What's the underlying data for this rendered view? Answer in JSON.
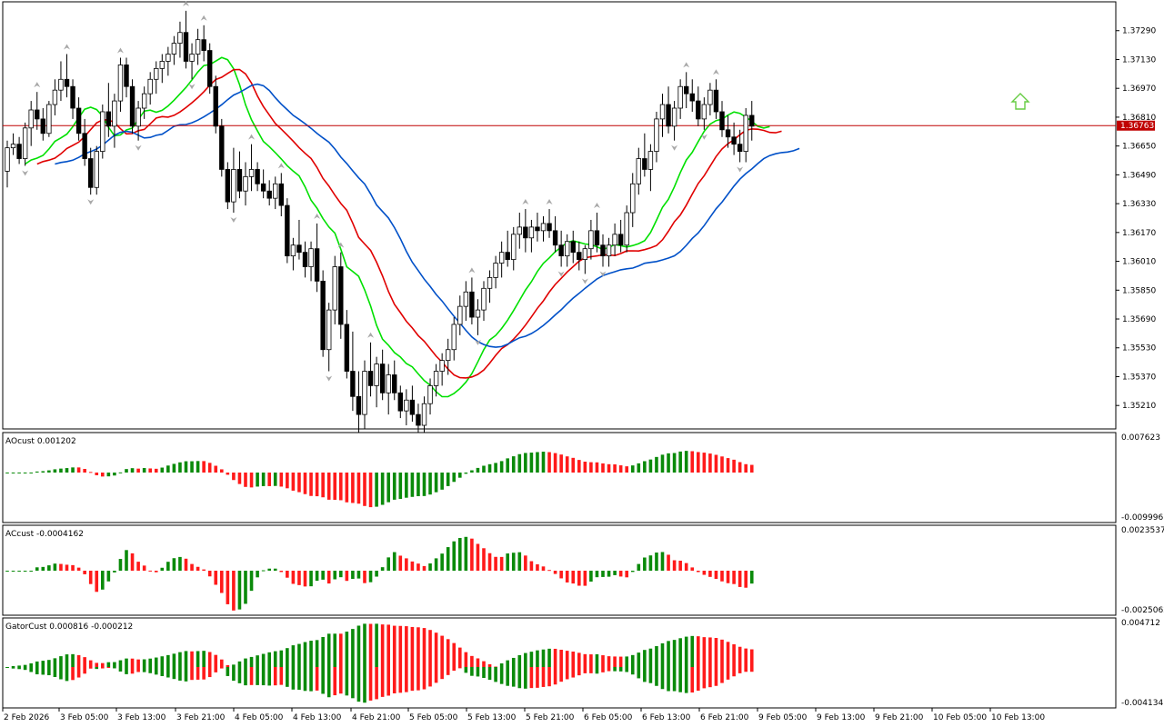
{
  "chart_data": {
    "type": "candlestick",
    "colors": {
      "bull_body": "#ffffff",
      "bear_body": "#000000",
      "candle_outline": "#000000",
      "ma_fast": "#00e000",
      "ma_mid": "#e00000",
      "ma_slow": "#0050c8",
      "hist_up": "#0a8a0a",
      "hist_down": "#ff1a1a",
      "price_line": "#c00000",
      "price_tag_bg": "#c00000",
      "fractal": "#a8a8a8",
      "signal_arrow": "#66cc44",
      "grid": "#000000"
    },
    "price_axis": {
      "ticks": [
        "1.37290",
        "1.37130",
        "1.36970",
        "1.36810",
        "1.36650",
        "1.36490",
        "1.36330",
        "1.36170",
        "1.36010",
        "1.35850",
        "1.35690",
        "1.35530",
        "1.35370",
        "1.35210"
      ],
      "min": 1.3509,
      "max": 1.3744
    },
    "current_price": "1.36763",
    "time_labels": [
      "2 Feb 2026",
      "3 Feb 05:00",
      "3 Feb 13:00",
      "3 Feb 21:00",
      "4 Feb 05:00",
      "4 Feb 13:00",
      "4 Feb 21:00",
      "5 Feb 05:00",
      "5 Feb 13:00",
      "5 Feb 21:00",
      "6 Feb 05:00",
      "6 Feb 13:00",
      "6 Feb 21:00",
      "9 Feb 05:00",
      "9 Feb 13:00",
      "9 Feb 21:00",
      "10 Feb 05:00",
      "10 Feb 13:00"
    ],
    "candles": [
      [
        1.3651,
        1.3668,
        1.3642,
        1.3664
      ],
      [
        1.3664,
        1.3672,
        1.366,
        1.3666
      ],
      [
        1.3666,
        1.367,
        1.3655,
        1.3658
      ],
      [
        1.3658,
        1.3678,
        1.3654,
        1.3675
      ],
      [
        1.3675,
        1.369,
        1.3665,
        1.3685
      ],
      [
        1.3685,
        1.3695,
        1.3674,
        1.368
      ],
      [
        1.368,
        1.3686,
        1.3668,
        1.3672
      ],
      [
        1.3672,
        1.369,
        1.367,
        1.3688
      ],
      [
        1.3688,
        1.3702,
        1.3682,
        1.3696
      ],
      [
        1.3696,
        1.3712,
        1.369,
        1.3702
      ],
      [
        1.3702,
        1.3716,
        1.3692,
        1.3698
      ],
      [
        1.3698,
        1.3702,
        1.368,
        1.3686
      ],
      [
        1.3686,
        1.3692,
        1.3668,
        1.3672
      ],
      [
        1.3672,
        1.368,
        1.3654,
        1.3658
      ],
      [
        1.3658,
        1.3664,
        1.3638,
        1.3642
      ],
      [
        1.3642,
        1.3665,
        1.3638,
        1.3662
      ],
      [
        1.3662,
        1.3688,
        1.3658,
        1.3684
      ],
      [
        1.3684,
        1.37,
        1.367,
        1.3676
      ],
      [
        1.3676,
        1.3694,
        1.3664,
        1.369
      ],
      [
        1.369,
        1.3714,
        1.3684,
        1.371
      ],
      [
        1.371,
        1.3714,
        1.3692,
        1.3698
      ],
      [
        1.3698,
        1.3702,
        1.3672,
        1.3676
      ],
      [
        1.3676,
        1.369,
        1.3668,
        1.3686
      ],
      [
        1.3686,
        1.3698,
        1.368,
        1.3694
      ],
      [
        1.3694,
        1.3706,
        1.3688,
        1.3702
      ],
      [
        1.3702,
        1.3712,
        1.3694,
        1.3708
      ],
      [
        1.3708,
        1.3716,
        1.37,
        1.3712
      ],
      [
        1.3712,
        1.372,
        1.3704,
        1.3716
      ],
      [
        1.3716,
        1.3726,
        1.371,
        1.3722
      ],
      [
        1.3722,
        1.3734,
        1.3714,
        1.3728
      ],
      [
        1.3728,
        1.374,
        1.3708,
        1.3712
      ],
      [
        1.3712,
        1.3722,
        1.3702,
        1.3716
      ],
      [
        1.3716,
        1.373,
        1.371,
        1.3724
      ],
      [
        1.3724,
        1.3732,
        1.3712,
        1.3718
      ],
      [
        1.3718,
        1.3722,
        1.3694,
        1.3698
      ],
      [
        1.3698,
        1.3704,
        1.3672,
        1.3676
      ],
      [
        1.3676,
        1.368,
        1.3648,
        1.3652
      ],
      [
        1.3652,
        1.3656,
        1.363,
        1.3634
      ],
      [
        1.3634,
        1.3664,
        1.3628,
        1.3652
      ],
      [
        1.3652,
        1.3662,
        1.3636,
        1.364
      ],
      [
        1.364,
        1.3656,
        1.3632,
        1.3648
      ],
      [
        1.3648,
        1.3666,
        1.364,
        1.3652
      ],
      [
        1.3652,
        1.3656,
        1.364,
        1.3644
      ],
      [
        1.3644,
        1.3652,
        1.3636,
        1.364
      ],
      [
        1.364,
        1.3646,
        1.3632,
        1.3636
      ],
      [
        1.3636,
        1.3648,
        1.363,
        1.3644
      ],
      [
        1.3644,
        1.365,
        1.3626,
        1.3632
      ],
      [
        1.3632,
        1.3636,
        1.36,
        1.3604
      ],
      [
        1.3604,
        1.3614,
        1.3596,
        1.361
      ],
      [
        1.361,
        1.3624,
        1.3602,
        1.3606
      ],
      [
        1.3606,
        1.3612,
        1.3592,
        1.3598
      ],
      [
        1.3598,
        1.3612,
        1.359,
        1.3608
      ],
      [
        1.3608,
        1.3622,
        1.3584,
        1.359
      ],
      [
        1.359,
        1.3596,
        1.3548,
        1.3552
      ],
      [
        1.3552,
        1.3578,
        1.354,
        1.3574
      ],
      [
        1.3574,
        1.3604,
        1.3566,
        1.3598
      ],
      [
        1.3598,
        1.3606,
        1.3558,
        1.3566
      ],
      [
        1.3566,
        1.3574,
        1.3536,
        1.354
      ],
      [
        1.354,
        1.3562,
        1.3518,
        1.3526
      ],
      [
        1.3526,
        1.354,
        1.3506,
        1.3516
      ],
      [
        1.3516,
        1.3546,
        1.3508,
        1.354
      ],
      [
        1.354,
        1.3556,
        1.3526,
        1.3532
      ],
      [
        1.3532,
        1.3548,
        1.352,
        1.3544
      ],
      [
        1.3544,
        1.3552,
        1.3524,
        1.3528
      ],
      [
        1.3528,
        1.3544,
        1.3516,
        1.3538
      ],
      [
        1.3538,
        1.3546,
        1.3524,
        1.3528
      ],
      [
        1.3528,
        1.3532,
        1.3514,
        1.3518
      ],
      [
        1.3518,
        1.353,
        1.351,
        1.3524
      ],
      [
        1.3524,
        1.3532,
        1.3512,
        1.3516
      ],
      [
        1.3516,
        1.3522,
        1.3506,
        1.351
      ],
      [
        1.351,
        1.3526,
        1.3504,
        1.3522
      ],
      [
        1.3522,
        1.3536,
        1.3516,
        1.3532
      ],
      [
        1.3532,
        1.3544,
        1.3526,
        1.354
      ],
      [
        1.354,
        1.355,
        1.3532,
        1.3546
      ],
      [
        1.3546,
        1.3558,
        1.3538,
        1.3552
      ],
      [
        1.3552,
        1.357,
        1.3546,
        1.3566
      ],
      [
        1.3566,
        1.3582,
        1.356,
        1.3576
      ],
      [
        1.3576,
        1.359,
        1.3568,
        1.3584
      ],
      [
        1.3584,
        1.3592,
        1.3566,
        1.357
      ],
      [
        1.357,
        1.358,
        1.356,
        1.3574
      ],
      [
        1.3574,
        1.359,
        1.3568,
        1.3586
      ],
      [
        1.3586,
        1.3596,
        1.3578,
        1.3592
      ],
      [
        1.3592,
        1.3604,
        1.3586,
        1.36
      ],
      [
        1.36,
        1.3612,
        1.3592,
        1.3606
      ],
      [
        1.3606,
        1.3618,
        1.3598,
        1.3602
      ],
      [
        1.3602,
        1.362,
        1.3596,
        1.3616
      ],
      [
        1.3616,
        1.3628,
        1.3608,
        1.362
      ],
      [
        1.362,
        1.363,
        1.3606,
        1.3614
      ],
      [
        1.3614,
        1.3624,
        1.3606,
        1.362
      ],
      [
        1.362,
        1.3628,
        1.3612,
        1.3618
      ],
      [
        1.3618,
        1.3626,
        1.3612,
        1.3622
      ],
      [
        1.3622,
        1.363,
        1.3614,
        1.3618
      ],
      [
        1.3618,
        1.3626,
        1.3606,
        1.361
      ],
      [
        1.361,
        1.3618,
        1.3598,
        1.3604
      ],
      [
        1.3604,
        1.3616,
        1.3598,
        1.3612
      ],
      [
        1.3612,
        1.3618,
        1.36,
        1.3606
      ],
      [
        1.3606,
        1.3612,
        1.3596,
        1.3602
      ],
      [
        1.3602,
        1.361,
        1.3594,
        1.3608
      ],
      [
        1.3608,
        1.3624,
        1.3602,
        1.3618
      ],
      [
        1.3618,
        1.3628,
        1.3606,
        1.361
      ],
      [
        1.361,
        1.3616,
        1.3598,
        1.3604
      ],
      [
        1.3604,
        1.3614,
        1.3598,
        1.361
      ],
      [
        1.361,
        1.3622,
        1.3604,
        1.3616
      ],
      [
        1.3616,
        1.3624,
        1.3606,
        1.361
      ],
      [
        1.361,
        1.3632,
        1.3606,
        1.3628
      ],
      [
        1.3628,
        1.365,
        1.362,
        1.3644
      ],
      [
        1.3644,
        1.3664,
        1.3638,
        1.3658
      ],
      [
        1.3658,
        1.3672,
        1.3648,
        1.3652
      ],
      [
        1.3652,
        1.3666,
        1.364,
        1.3662
      ],
      [
        1.3662,
        1.3684,
        1.3656,
        1.368
      ],
      [
        1.368,
        1.3694,
        1.367,
        1.3688
      ],
      [
        1.3688,
        1.3698,
        1.3672,
        1.3676
      ],
      [
        1.3676,
        1.369,
        1.3668,
        1.3686
      ],
      [
        1.3686,
        1.3702,
        1.368,
        1.3698
      ],
      [
        1.3698,
        1.3706,
        1.3686,
        1.3694
      ],
      [
        1.3694,
        1.3702,
        1.3684,
        1.369
      ],
      [
        1.369,
        1.3698,
        1.3676,
        1.368
      ],
      [
        1.368,
        1.3692,
        1.3674,
        1.3688
      ],
      [
        1.3688,
        1.37,
        1.3682,
        1.3696
      ],
      [
        1.3696,
        1.3702,
        1.368,
        1.3684
      ],
      [
        1.3684,
        1.369,
        1.367,
        1.3674
      ],
      [
        1.3674,
        1.3682,
        1.3664,
        1.367
      ],
      [
        1.367,
        1.3678,
        1.366,
        1.3666
      ],
      [
        1.3666,
        1.3674,
        1.3656,
        1.3662
      ],
      [
        1.3662,
        1.3686,
        1.3656,
        1.3682
      ],
      [
        1.3682,
        1.369,
        1.3668,
        1.3676
      ]
    ],
    "indicator_panels": [
      {
        "name": "AOcust",
        "values_text": "AOcust 0.001202",
        "scale_max": "0.007623",
        "scale_min": "-0.009996"
      },
      {
        "name": "ACcust",
        "values_text": "ACcust -0.0004162",
        "scale_max": "0.0023537",
        "scale_min": "-0.0025062"
      },
      {
        "name": "GatorCust",
        "values_text": "GatorCust 0.000816 -0.000212",
        "scale_max": "0.004712",
        "scale_min": "-0.004134"
      }
    ]
  }
}
